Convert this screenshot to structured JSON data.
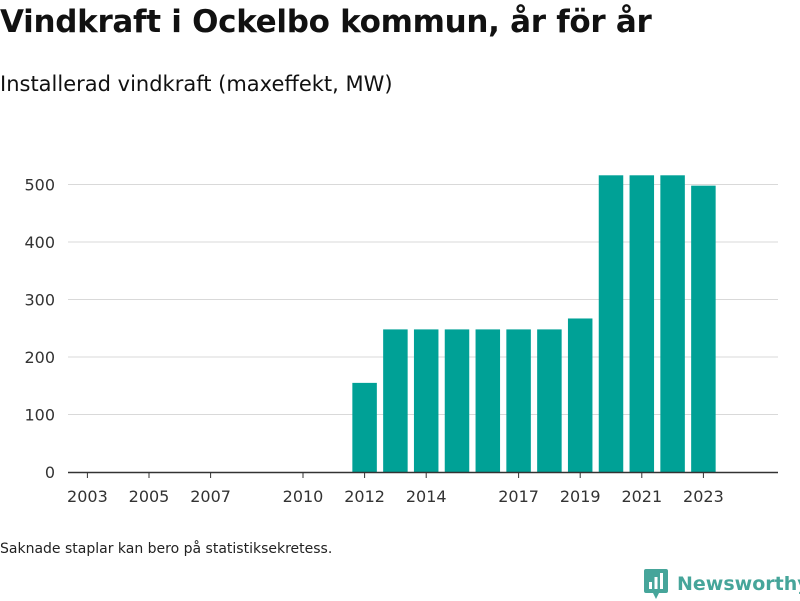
{
  "header": {
    "title": "Vindkraft i Ockelbo kommun, år för år",
    "subtitle": "Installerad vindkraft (maxeffekt, MW)"
  },
  "footer": {
    "note": "Saknade staplar kan bero på statistiksekretess.",
    "brand": "Newsworthy"
  },
  "colors": {
    "bar": "#00a196",
    "grid": "#d9d9d9",
    "axis": "#333333",
    "brand": "#46a59a"
  },
  "chart_data": {
    "type": "bar",
    "years": [
      2003,
      2004,
      2005,
      2006,
      2007,
      2008,
      2009,
      2010,
      2011,
      2012,
      2013,
      2014,
      2015,
      2016,
      2017,
      2018,
      2019,
      2020,
      2021,
      2022,
      2023
    ],
    "values": [
      0,
      0,
      0,
      0,
      0,
      0,
      0,
      0,
      0,
      155,
      248,
      248,
      248,
      248,
      248,
      248,
      267,
      516,
      516,
      516,
      498
    ],
    "x_tick_labels": [
      "2003",
      "2005",
      "2007",
      "2010",
      "2012",
      "2014",
      "2017",
      "2019",
      "2021",
      "2023"
    ],
    "y_ticks": [
      0,
      100,
      200,
      300,
      400,
      500
    ],
    "ylim": [
      0,
      560
    ],
    "grid": true,
    "xlabel": "",
    "ylabel": ""
  }
}
